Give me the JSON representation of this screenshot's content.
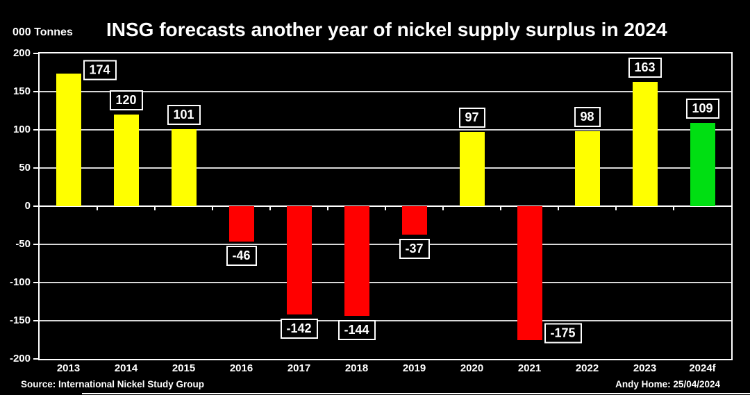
{
  "header": {
    "title": "INSG forecasts another year of nickel supply surplus in 2024",
    "units_label": "000 Tonnes"
  },
  "footer": {
    "source": "Source: International Nickel Study Group",
    "credit": "Andy Home: 25/04/2024"
  },
  "chart_data": {
    "type": "bar",
    "title": "INSG forecasts another year of nickel supply surplus in 2024",
    "xlabel": "",
    "ylabel": "000 Tonnes",
    "categories": [
      "2013",
      "2014",
      "2015",
      "2016",
      "2017",
      "2018",
      "2019",
      "2020",
      "2021",
      "2022",
      "2023",
      "2024f"
    ],
    "values": [
      174,
      120,
      101,
      -46,
      -142,
      -144,
      -37,
      97,
      -175,
      98,
      163,
      109
    ],
    "data_labels": [
      "174",
      "120",
      "101",
      "-46",
      "-142",
      "-144",
      "-37",
      "97",
      "-175",
      "98",
      "163",
      "109"
    ],
    "bar_colors": [
      "#ffff00",
      "#ffff00",
      "#ffff00",
      "#ff0000",
      "#ff0000",
      "#ff0000",
      "#ff0000",
      "#ffff00",
      "#ff0000",
      "#ffff00",
      "#ffff00",
      "#00df12"
    ],
    "label_placement": [
      "right",
      "above",
      "above",
      "below",
      "below",
      "below",
      "below",
      "above",
      "right-below",
      "above",
      "above",
      "above"
    ],
    "colors": {
      "surplus": "#ffff00",
      "deficit": "#ff0000",
      "forecast": "#00df12",
      "background": "#000000",
      "grid": "#d9d9d9",
      "axis": "#ffffff",
      "text": "#ffffff"
    },
    "ylim": [
      -200,
      200
    ],
    "yticks": [
      200,
      150,
      100,
      50,
      0,
      -50,
      -100,
      -150,
      -200
    ],
    "grid": "horizontal",
    "legend": "none"
  }
}
